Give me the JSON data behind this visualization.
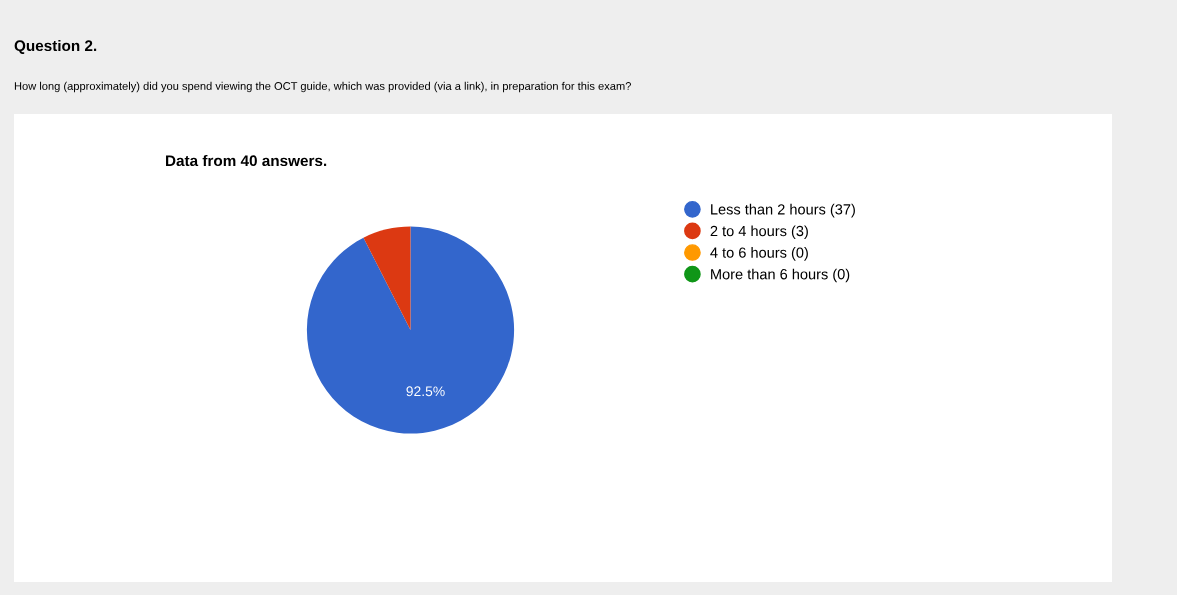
{
  "chart_data": {
    "type": "pie",
    "title": "Question 2.",
    "subtitle": "How long (approximately) did you spend viewing the OCT guide, which was provided (via a link), in preparation for this exam?",
    "annotations": [
      "Data from 40 answers."
    ],
    "categories": [
      "Less than 2 hours (37)",
      "2 to 4 hours (3)",
      "4 to 6 hours (0)",
      "More than 6 hours (0)"
    ],
    "values": [
      92.5,
      7.5,
      0,
      0
    ],
    "colors": [
      "#3366cc",
      "#dc3912",
      "#ff9900",
      "#109618"
    ],
    "value_labels": [
      "92.5%",
      null,
      null,
      null
    ],
    "legend": "right"
  }
}
